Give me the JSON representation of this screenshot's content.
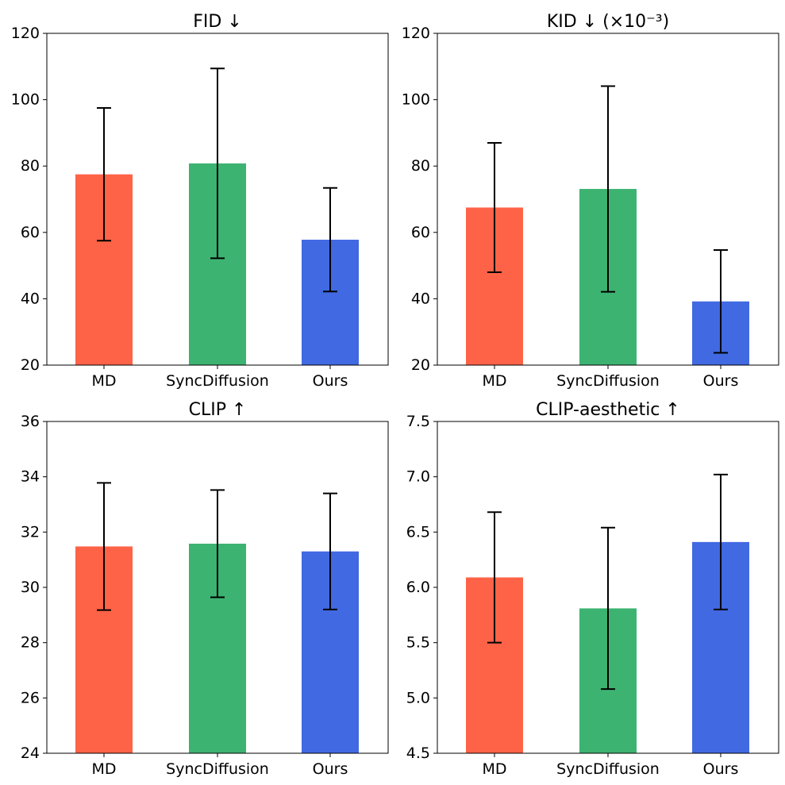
{
  "chart_data": [
    {
      "type": "bar",
      "title": "FID",
      "title_arrow": "↓",
      "title_suffix": "",
      "categories": [
        "MD",
        "SyncDiffusion",
        "Ours"
      ],
      "values": [
        77.5,
        80.8,
        57.8
      ],
      "errors": [
        20.0,
        28.6,
        15.6
      ],
      "colors": [
        "#ff6347",
        "#3cb371",
        "#4169e1"
      ],
      "ylim": [
        20,
        120
      ],
      "yticks": [
        20,
        40,
        60,
        80,
        100,
        120
      ],
      "ytick_labels": [
        "20",
        "40",
        "60",
        "80",
        "100",
        "120"
      ],
      "xlabel": "",
      "ylabel": ""
    },
    {
      "type": "bar",
      "title": "KID",
      "title_arrow": "↓",
      "title_suffix": "(×10⁻³)",
      "categories": [
        "MD",
        "SyncDiffusion",
        "Ours"
      ],
      "values": [
        67.5,
        73.1,
        39.2
      ],
      "errors": [
        19.5,
        31.0,
        15.5
      ],
      "colors": [
        "#ff6347",
        "#3cb371",
        "#4169e1"
      ],
      "ylim": [
        20,
        120
      ],
      "yticks": [
        20,
        40,
        60,
        80,
        100,
        120
      ],
      "ytick_labels": [
        "20",
        "40",
        "60",
        "80",
        "100",
        "120"
      ],
      "xlabel": "",
      "ylabel": ""
    },
    {
      "type": "bar",
      "title": "CLIP",
      "title_arrow": "↑",
      "title_suffix": "",
      "categories": [
        "MD",
        "SyncDiffusion",
        "Ours"
      ],
      "values": [
        31.48,
        31.58,
        31.3
      ],
      "errors": [
        2.3,
        1.94,
        2.1
      ],
      "colors": [
        "#ff6347",
        "#3cb371",
        "#4169e1"
      ],
      "ylim": [
        24,
        36
      ],
      "yticks": [
        24,
        26,
        28,
        30,
        32,
        34,
        36
      ],
      "ytick_labels": [
        "24",
        "26",
        "28",
        "30",
        "32",
        "34",
        "36"
      ],
      "xlabel": "",
      "ylabel": ""
    },
    {
      "type": "bar",
      "title": "CLIP-aesthetic",
      "title_arrow": "↑",
      "title_suffix": "",
      "categories": [
        "MD",
        "SyncDiffusion",
        "Ours"
      ],
      "values": [
        6.09,
        5.81,
        6.41
      ],
      "errors": [
        0.59,
        0.73,
        0.61
      ],
      "colors": [
        "#ff6347",
        "#3cb371",
        "#4169e1"
      ],
      "ylim": [
        4.5,
        7.5
      ],
      "yticks": [
        4.5,
        5.0,
        5.5,
        6.0,
        6.5,
        7.0,
        7.5
      ],
      "ytick_labels": [
        "4.5",
        "5.0",
        "5.5",
        "6.0",
        "6.5",
        "7.0",
        "7.5"
      ],
      "xlabel": "",
      "ylabel": ""
    }
  ]
}
